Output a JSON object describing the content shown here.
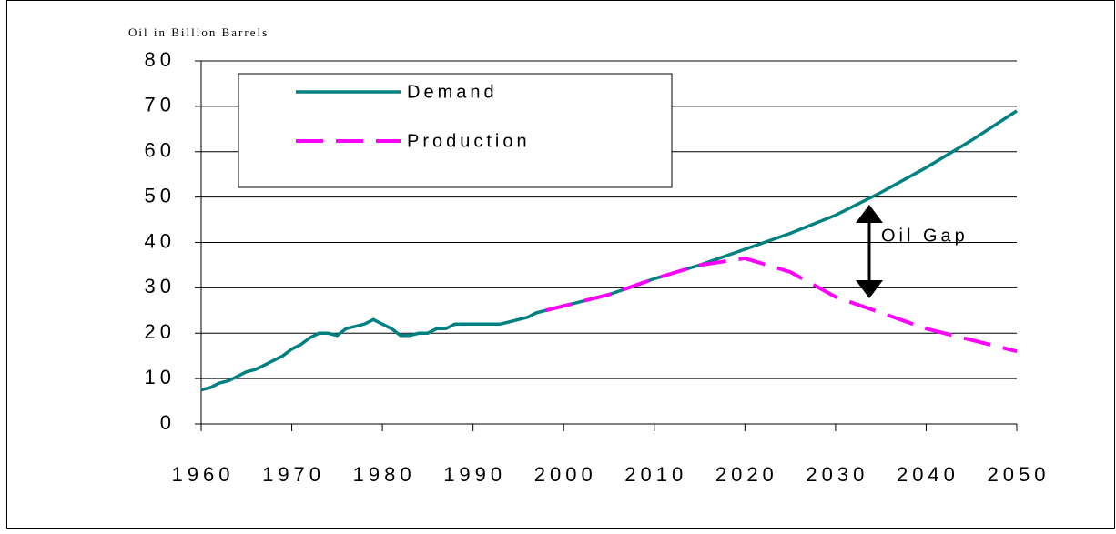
{
  "chart_data": {
    "type": "line",
    "y_axis_label": "Oil in Billion Barrels",
    "x": [
      1960,
      1961,
      1962,
      1963,
      1964,
      1965,
      1966,
      1967,
      1968,
      1969,
      1970,
      1971,
      1972,
      1973,
      1974,
      1975,
      1976,
      1977,
      1978,
      1979,
      1980,
      1981,
      1982,
      1983,
      1984,
      1985,
      1986,
      1987,
      1988,
      1989,
      1990,
      1991,
      1992,
      1993,
      1994,
      1995,
      1996,
      1997,
      1998,
      2000,
      2005,
      2010,
      2015,
      2020,
      2025,
      2030,
      2035,
      2040,
      2045,
      2050
    ],
    "series": [
      {
        "name": "Demand",
        "color": "#008080",
        "values": [
          7.5,
          8,
          9,
          9.5,
          10.5,
          11.5,
          12,
          13,
          14,
          15,
          16.5,
          17.5,
          19,
          20,
          20,
          19.5,
          21,
          21.5,
          22,
          23,
          22,
          21,
          19.5,
          19.5,
          20,
          20,
          21,
          21,
          22,
          22,
          22,
          22,
          22,
          22,
          22.5,
          23,
          23.5,
          24.5,
          25,
          26,
          28.5,
          32,
          35,
          38.5,
          42,
          46,
          51,
          56.5,
          62.5,
          69
        ]
      },
      {
        "name": "Production",
        "color": "#ff00ff",
        "dashed": true,
        "values": [
          null,
          null,
          null,
          null,
          null,
          null,
          null,
          null,
          null,
          null,
          null,
          null,
          null,
          null,
          null,
          null,
          null,
          null,
          null,
          null,
          null,
          null,
          null,
          null,
          null,
          null,
          null,
          null,
          null,
          null,
          null,
          null,
          null,
          null,
          null,
          null,
          null,
          null,
          25,
          26,
          28.5,
          32,
          35,
          36.5,
          33.5,
          28,
          24.5,
          21,
          18.5,
          16
        ]
      }
    ],
    "annotation": "Oil Gap",
    "xlim": [
      1960,
      2050
    ],
    "xticks": [
      1960,
      1970,
      1980,
      1990,
      2000,
      2010,
      2020,
      2030,
      2040,
      2050
    ],
    "ylim": [
      0,
      80
    ],
    "yticks": [
      0,
      10,
      20,
      30,
      40,
      50,
      60,
      70,
      80
    ],
    "grid": true
  }
}
